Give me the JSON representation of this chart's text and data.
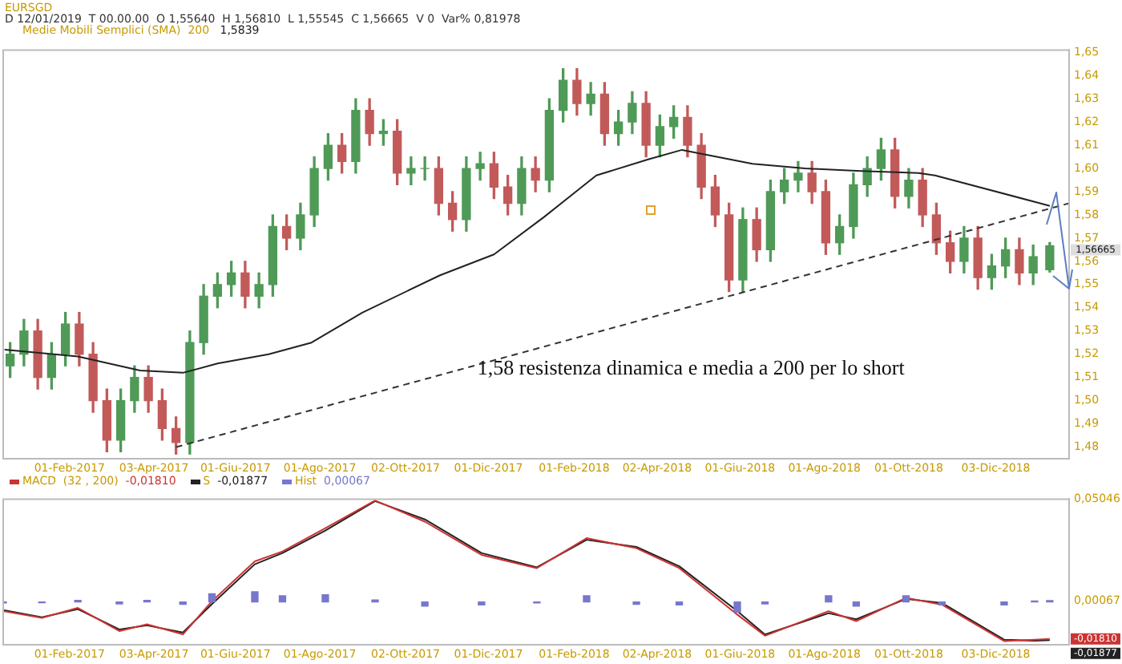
{
  "chart_data": [
    {
      "type": "candlestick",
      "title": "EURSGD",
      "legend": "top left",
      "x": [
        "2016-12-20",
        "2016-12-30",
        "2017-01-09",
        "2017-01-19",
        "2017-01-29",
        "2017-02-08",
        "2017-02-18",
        "2017-02-28",
        "2017-03-10",
        "2017-03-20",
        "2017-03-30",
        "2017-04-09",
        "2017-04-19",
        "2017-04-29",
        "2017-05-09",
        "2017-05-19",
        "2017-05-29",
        "2017-06-08",
        "2017-06-18",
        "2017-06-28",
        "2017-07-08",
        "2017-07-18",
        "2017-07-28",
        "2017-08-07",
        "2017-08-17",
        "2017-08-27",
        "2017-09-06",
        "2017-09-16",
        "2017-09-26",
        "2017-10-06",
        "2017-10-16",
        "2017-10-26",
        "2017-11-05",
        "2017-11-15",
        "2017-11-25",
        "2017-12-05",
        "2017-12-15",
        "2017-12-25",
        "2018-01-04",
        "2018-01-14",
        "2018-01-24",
        "2018-02-03",
        "2018-02-13",
        "2018-02-23",
        "2018-03-05",
        "2018-03-15",
        "2018-03-25",
        "2018-04-04",
        "2018-04-14",
        "2018-04-24",
        "2018-05-04",
        "2018-05-14",
        "2018-05-24",
        "2018-06-03",
        "2018-06-13",
        "2018-06-23",
        "2018-07-03",
        "2018-07-13",
        "2018-07-23",
        "2018-08-02",
        "2018-08-12",
        "2018-08-22",
        "2018-09-01",
        "2018-09-11",
        "2018-09-21",
        "2018-10-01",
        "2018-10-11",
        "2018-10-21",
        "2018-10-31",
        "2018-11-10",
        "2018-11-20",
        "2018-11-30",
        "2018-12-10",
        "2018-12-20",
        "2018-12-30",
        "2019-01-11"
      ],
      "ohlc": [
        [
          1.515,
          1.525,
          1.51,
          1.52
        ],
        [
          1.52,
          1.535,
          1.515,
          1.53
        ],
        [
          1.53,
          1.535,
          1.505,
          1.51
        ],
        [
          1.51,
          1.525,
          1.505,
          1.52
        ],
        [
          1.52,
          1.538,
          1.515,
          1.533
        ],
        [
          1.533,
          1.538,
          1.515,
          1.52
        ],
        [
          1.52,
          1.525,
          1.495,
          1.5
        ],
        [
          1.5,
          1.505,
          1.478,
          1.483
        ],
        [
          1.483,
          1.505,
          1.478,
          1.5
        ],
        [
          1.5,
          1.515,
          1.495,
          1.51
        ],
        [
          1.51,
          1.515,
          1.495,
          1.5
        ],
        [
          1.5,
          1.505,
          1.483,
          1.488
        ],
        [
          1.488,
          1.493,
          1.477,
          1.482
        ],
        [
          1.482,
          1.53,
          1.477,
          1.525
        ],
        [
          1.525,
          1.55,
          1.52,
          1.545
        ],
        [
          1.545,
          1.555,
          1.54,
          1.55
        ],
        [
          1.55,
          1.56,
          1.545,
          1.555
        ],
        [
          1.555,
          1.56,
          1.54,
          1.545
        ],
        [
          1.545,
          1.555,
          1.54,
          1.55
        ],
        [
          1.55,
          1.58,
          1.545,
          1.575
        ],
        [
          1.575,
          1.58,
          1.565,
          1.57
        ],
        [
          1.57,
          1.585,
          1.565,
          1.58
        ],
        [
          1.58,
          1.605,
          1.575,
          1.6
        ],
        [
          1.6,
          1.615,
          1.595,
          1.61
        ],
        [
          1.61,
          1.615,
          1.598,
          1.603
        ],
        [
          1.603,
          1.63,
          1.598,
          1.625
        ],
        [
          1.625,
          1.63,
          1.61,
          1.615
        ],
        [
          1.615,
          1.621,
          1.61,
          1.616
        ],
        [
          1.616,
          1.621,
          1.593,
          1.598
        ],
        [
          1.598,
          1.605,
          1.593,
          1.6
        ],
        [
          1.6,
          1.605,
          1.595,
          1.6
        ],
        [
          1.6,
          1.605,
          1.58,
          1.585
        ],
        [
          1.585,
          1.59,
          1.573,
          1.578
        ],
        [
          1.578,
          1.605,
          1.573,
          1.6
        ],
        [
          1.6,
          1.607,
          1.595,
          1.602
        ],
        [
          1.602,
          1.607,
          1.587,
          1.592
        ],
        [
          1.592,
          1.597,
          1.58,
          1.585
        ],
        [
          1.585,
          1.605,
          1.58,
          1.6
        ],
        [
          1.6,
          1.605,
          1.59,
          1.595
        ],
        [
          1.595,
          1.63,
          1.59,
          1.625
        ],
        [
          1.625,
          1.643,
          1.62,
          1.638
        ],
        [
          1.638,
          1.643,
          1.623,
          1.628
        ],
        [
          1.628,
          1.637,
          1.623,
          1.632
        ],
        [
          1.632,
          1.637,
          1.61,
          1.615
        ],
        [
          1.615,
          1.625,
          1.61,
          1.62
        ],
        [
          1.62,
          1.633,
          1.615,
          1.628
        ],
        [
          1.628,
          1.633,
          1.605,
          1.61
        ],
        [
          1.61,
          1.623,
          1.605,
          1.618
        ],
        [
          1.618,
          1.627,
          1.613,
          1.622
        ],
        [
          1.622,
          1.627,
          1.605,
          1.61
        ],
        [
          1.61,
          1.615,
          1.587,
          1.592
        ],
        [
          1.592,
          1.597,
          1.575,
          1.58
        ],
        [
          1.58,
          1.585,
          1.547,
          1.552
        ],
        [
          1.552,
          1.583,
          1.547,
          1.578
        ],
        [
          1.578,
          1.583,
          1.56,
          1.565
        ],
        [
          1.565,
          1.595,
          1.56,
          1.59
        ],
        [
          1.59,
          1.6,
          1.585,
          1.595
        ],
        [
          1.595,
          1.603,
          1.59,
          1.598
        ],
        [
          1.598,
          1.603,
          1.585,
          1.59
        ],
        [
          1.59,
          1.595,
          1.563,
          1.568
        ],
        [
          1.568,
          1.58,
          1.563,
          1.575
        ],
        [
          1.575,
          1.598,
          1.57,
          1.593
        ],
        [
          1.593,
          1.605,
          1.588,
          1.6
        ],
        [
          1.6,
          1.613,
          1.595,
          1.608
        ],
        [
          1.608,
          1.613,
          1.583,
          1.588
        ],
        [
          1.588,
          1.6,
          1.583,
          1.595
        ],
        [
          1.595,
          1.6,
          1.575,
          1.58
        ],
        [
          1.58,
          1.585,
          1.563,
          1.568
        ],
        [
          1.568,
          1.573,
          1.555,
          1.56
        ],
        [
          1.56,
          1.575,
          1.555,
          1.57
        ],
        [
          1.57,
          1.575,
          1.548,
          1.553
        ],
        [
          1.553,
          1.563,
          1.548,
          1.558
        ],
        [
          1.558,
          1.57,
          1.553,
          1.565
        ],
        [
          1.565,
          1.57,
          1.55,
          1.555
        ],
        [
          1.555,
          1.567,
          1.55,
          1.562
        ],
        [
          1.5564,
          1.5681,
          1.5554,
          1.5667
        ]
      ],
      "series": [
        {
          "name": "Medie Mobili Semplici (SMA)  200",
          "type": "line",
          "color": "#222222",
          "x": [
            "2016-12-16",
            "2017-02-07",
            "2017-03-24",
            "2017-04-24",
            "2017-05-19",
            "2017-06-25",
            "2017-07-26",
            "2017-09-01",
            "2017-10-27",
            "2017-12-05",
            "2018-01-10",
            "2018-02-17",
            "2018-03-27",
            "2018-04-20",
            "2018-06-10",
            "2018-07-18",
            "2018-08-24",
            "2018-10-08",
            "2018-10-20",
            "2019-01-11"
          ],
          "values": [
            1.522,
            1.519,
            1.513,
            1.512,
            1.516,
            1.52,
            1.525,
            1.538,
            1.554,
            1.563,
            1.579,
            1.597,
            1.604,
            1.608,
            1.602,
            1.6,
            1.599,
            1.598,
            1.597,
            1.5839
          ]
        },
        {
          "type": "line",
          "line_style": "dashed",
          "color": "#333333",
          "x": [
            "2017-04-19",
            "2019-01-25"
          ],
          "values": [
            1.48,
            1.585
          ]
        }
      ],
      "xlim": [
        "2016-12-15",
        "2019-01-25"
      ],
      "xticks": [
        {
          "value": "2017-02-01",
          "label": "01-Feb-2017"
        },
        {
          "value": "2017-04-03",
          "label": "03-Apr-2017"
        },
        {
          "value": "2017-06-01",
          "label": "01-Giu-2017"
        },
        {
          "value": "2017-08-01",
          "label": "01-Ago-2017"
        },
        {
          "value": "2017-10-02",
          "label": "02-Ott-2017"
        },
        {
          "value": "2017-12-01",
          "label": "01-Dic-2017"
        },
        {
          "value": "2018-02-01",
          "label": "01-Feb-2018"
        },
        {
          "value": "2018-04-02",
          "label": "02-Apr-2018"
        },
        {
          "value": "2018-06-01",
          "label": "01-Giu-2018"
        },
        {
          "value": "2018-08-01",
          "label": "01-Ago-2018"
        },
        {
          "value": "2018-10-01",
          "label": "01-Ott-2018"
        },
        {
          "value": "2018-12-03",
          "label": "03-Dic-2018"
        }
      ],
      "ylim": [
        1.475,
        1.651
      ],
      "yticks": [
        {
          "value": 1.48,
          "label": "1,48"
        },
        {
          "value": 1.49,
          "label": "1,49"
        },
        {
          "value": 1.5,
          "label": "1,50"
        },
        {
          "value": 1.51,
          "label": "1,51"
        },
        {
          "value": 1.52,
          "label": "1,52"
        },
        {
          "value": 1.53,
          "label": "1,53"
        },
        {
          "value": 1.54,
          "label": "1,54"
        },
        {
          "value": 1.55,
          "label": "1,55"
        },
        {
          "value": 1.56,
          "label": "1,56"
        },
        {
          "value": 1.57,
          "label": "1,57"
        },
        {
          "value": 1.58,
          "label": "1,58"
        },
        {
          "value": 1.59,
          "label": "1,59"
        },
        {
          "value": 1.6,
          "label": "1,60"
        },
        {
          "value": 1.61,
          "label": "1,61"
        },
        {
          "value": 1.62,
          "label": "1,62"
        },
        {
          "value": 1.63,
          "label": "1,63"
        },
        {
          "value": 1.64,
          "label": "1,64"
        },
        {
          "value": 1.65,
          "label": "1,65"
        }
      ],
      "annotations": [
        "D 12/01/2019  T 00.00.00  O 1,55640  H 1,56810  L 1,55545  C 1,56665  V 0  Var% 0,81978",
        "1,5839",
        "1,58 resistenza dinamica e media a 200 per lo short",
        {
          "text": "1,56665",
          "x": "2019-01-11",
          "y": 1.56665
        }
      ]
    },
    {
      "type": "line",
      "legend": "top left",
      "x": [
        "2016-12-15",
        "2017-01-12",
        "2017-02-07",
        "2017-03-09",
        "2017-03-29",
        "2017-04-24",
        "2017-05-15",
        "2017-06-15",
        "2017-07-05",
        "2017-08-05",
        "2017-09-10",
        "2017-10-16",
        "2017-11-26",
        "2018-01-05",
        "2018-02-10",
        "2018-03-18",
        "2018-04-18",
        "2018-05-30",
        "2018-06-19",
        "2018-08-04",
        "2018-08-24",
        "2018-09-29",
        "2018-10-25",
        "2018-12-09",
        "2018-12-31",
        "2019-01-11"
      ],
      "series": [
        {
          "name": "MACD  (32 , 200)",
          "color": "#cc3333",
          "values": [
            -0.0045,
            -0.0078,
            -0.0029,
            -0.0143,
            -0.011,
            -0.0159,
            0.0004,
            0.0199,
            0.0248,
            0.0362,
            0.0498,
            0.0394,
            0.0231,
            0.0166,
            0.0313,
            0.0264,
            0.0166,
            -0.0062,
            -0.0166,
            -0.0045,
            -0.0094,
            0.002,
            -0.0013,
            -0.0192,
            -0.0185,
            -0.0181
          ]
        },
        {
          "name": "S",
          "color": "#222222",
          "values": [
            -0.004,
            -0.0075,
            -0.0035,
            -0.0135,
            -0.0115,
            -0.015,
            -0.001,
            0.0185,
            0.024,
            0.035,
            0.0495,
            0.0405,
            0.024,
            0.017,
            0.0305,
            0.027,
            0.0175,
            -0.0045,
            -0.016,
            -0.0055,
            -0.0085,
            0.0015,
            -0.0005,
            -0.0185,
            -0.019,
            -0.01877
          ]
        },
        {
          "name": "Hist",
          "type": "bar",
          "color": "#7777cc",
          "values": [
            -0.0005,
            -0.0004,
            0.0008,
            -0.001,
            0.0008,
            -0.0012,
            0.004,
            0.005,
            0.003,
            0.0035,
            0.001,
            -0.002,
            -0.0015,
            -0.0005,
            0.003,
            -0.0012,
            -0.0015,
            -0.005,
            -0.001,
            0.003,
            -0.002,
            0.003,
            -0.0015,
            -0.0015,
            0.0005,
            0.00067
          ]
        }
      ],
      "xlim": [
        "2016-12-15",
        "2019-01-25"
      ],
      "xticks": [
        {
          "value": "2017-02-01",
          "label": "01-Feb-2017"
        },
        {
          "value": "2017-04-03",
          "label": "03-Apr-2017"
        },
        {
          "value": "2017-06-01",
          "label": "01-Giu-2017"
        },
        {
          "value": "2017-08-01",
          "label": "01-Ago-2017"
        },
        {
          "value": "2017-10-02",
          "label": "02-Ott-2017"
        },
        {
          "value": "2017-12-01",
          "label": "01-Dic-2017"
        },
        {
          "value": "2018-02-01",
          "label": "01-Feb-2018"
        },
        {
          "value": "2018-04-02",
          "label": "02-Apr-2018"
        },
        {
          "value": "2018-06-01",
          "label": "01-Giu-2018"
        },
        {
          "value": "2018-08-01",
          "label": "01-Ago-2018"
        },
        {
          "value": "2018-10-01",
          "label": "01-Ott-2018"
        },
        {
          "value": "2018-12-03",
          "label": "03-Dic-2018"
        }
      ],
      "ylim": [
        -0.021,
        0.05046
      ],
      "yticks": [
        {
          "value": 0.00067,
          "label": "0,00067"
        },
        {
          "value": 0.05046,
          "label": "0,05046"
        }
      ],
      "annotations": [
        "-0,01810",
        "-0,01877",
        "0,00067",
        {
          "text": "-0,01810",
          "x": "2019-01-11",
          "y": -0.0181
        },
        {
          "text": "-0,01877",
          "x": "2019-01-11",
          "y": -0.01877
        }
      ]
    }
  ]
}
